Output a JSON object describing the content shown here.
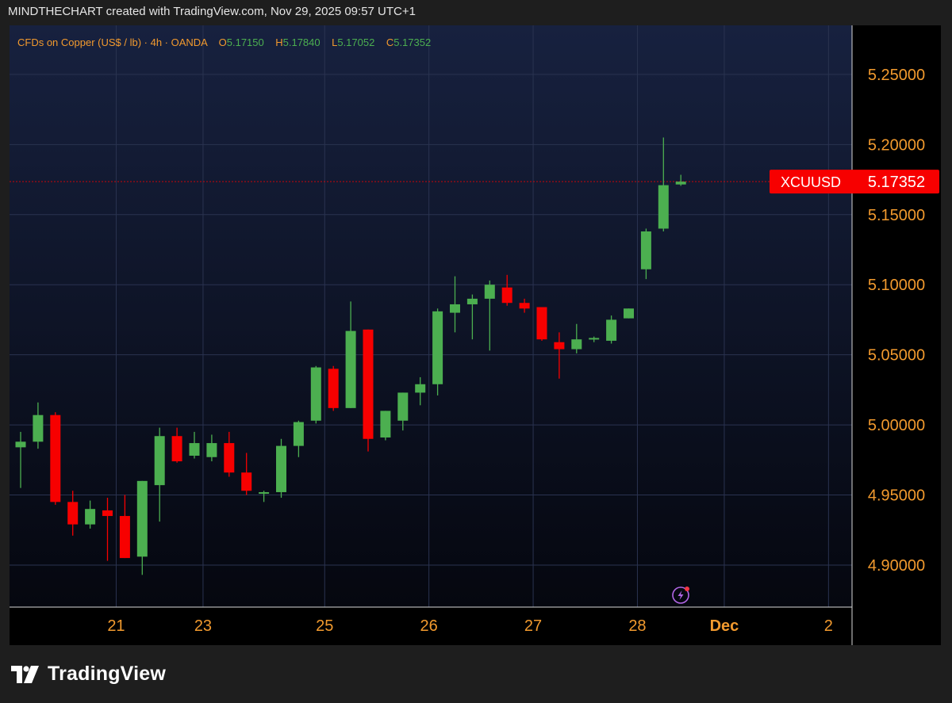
{
  "header": {
    "created_line": "MINDTHECHART created with TradingView.com, Nov 29, 2025 09:57 UTC+1"
  },
  "legend": {
    "instrument": "CFDs on Copper (US$ / lb) · 4h · OANDA",
    "o_label": "O",
    "o_value": "5.17150",
    "h_label": "H",
    "h_value": "5.17840",
    "l_label": "L",
    "l_value": "5.17052",
    "c_label": "C",
    "c_value": "5.17352"
  },
  "price_tag": {
    "symbol": "XCUUSD",
    "value": "5.17352",
    "price": 5.17352
  },
  "brand": {
    "name": "TradingView"
  },
  "colors": {
    "up": "#4caf50",
    "down": "#f70000",
    "axis_text": "#f29a2e",
    "tag_bg": "#f70000"
  },
  "chart_data": {
    "type": "candlestick",
    "symbol": "XCUUSD",
    "timeframe": "4h",
    "ylim": [
      4.87,
      5.285
    ],
    "y_ticks": [
      4.9,
      4.95,
      5.0,
      5.05,
      5.1,
      5.15,
      5.2,
      5.25
    ],
    "y_tick_labels": [
      "4.90000",
      "4.95000",
      "5.00000",
      "5.05000",
      "5.10000",
      "5.15000",
      "5.20000",
      "5.25000"
    ],
    "x_ticks": [
      {
        "label": "21",
        "bar": 5.5
      },
      {
        "label": "23",
        "bar": 10.5
      },
      {
        "label": "25",
        "bar": 17.5
      },
      {
        "label": "26",
        "bar": 23.5
      },
      {
        "label": "27",
        "bar": 29.5
      },
      {
        "label": "28",
        "bar": 35.5
      },
      {
        "label": "Dec",
        "bar": 40.5,
        "bold": true
      },
      {
        "label": "2",
        "bar": 46.5
      }
    ],
    "grid": true,
    "candles": [
      {
        "o": 4.984,
        "h": 4.995,
        "l": 4.955,
        "c": 4.988
      },
      {
        "o": 4.988,
        "h": 5.016,
        "l": 4.983,
        "c": 5.007
      },
      {
        "o": 5.007,
        "h": 5.009,
        "l": 4.943,
        "c": 4.945
      },
      {
        "o": 4.945,
        "h": 4.953,
        "l": 4.921,
        "c": 4.929
      },
      {
        "o": 4.929,
        "h": 4.946,
        "l": 4.926,
        "c": 4.94
      },
      {
        "o": 4.939,
        "h": 4.948,
        "l": 4.903,
        "c": 4.935
      },
      {
        "o": 4.935,
        "h": 4.95,
        "l": 4.905,
        "c": 4.905
      },
      {
        "o": 4.906,
        "h": 4.96,
        "l": 4.893,
        "c": 4.96
      },
      {
        "o": 4.957,
        "h": 4.998,
        "l": 4.931,
        "c": 4.992
      },
      {
        "o": 4.992,
        "h": 4.998,
        "l": 4.973,
        "c": 4.974
      },
      {
        "o": 4.978,
        "h": 4.995,
        "l": 4.976,
        "c": 4.987
      },
      {
        "o": 4.977,
        "h": 4.993,
        "l": 4.974,
        "c": 4.987
      },
      {
        "o": 4.987,
        "h": 4.995,
        "l": 4.963,
        "c": 4.966
      },
      {
        "o": 4.966,
        "h": 4.98,
        "l": 4.95,
        "c": 4.953
      },
      {
        "o": 4.952,
        "h": 4.953,
        "l": 4.945,
        "c": 4.952
      },
      {
        "o": 4.952,
        "h": 4.99,
        "l": 4.948,
        "c": 4.985
      },
      {
        "o": 4.985,
        "h": 5.003,
        "l": 4.977,
        "c": 5.002
      },
      {
        "o": 5.003,
        "h": 5.042,
        "l": 5.001,
        "c": 5.041
      },
      {
        "o": 5.04,
        "h": 5.042,
        "l": 5.01,
        "c": 5.012
      },
      {
        "o": 5.012,
        "h": 5.088,
        "l": 5.012,
        "c": 5.067
      },
      {
        "o": 5.068,
        "h": 5.068,
        "l": 4.981,
        "c": 4.99
      },
      {
        "o": 4.991,
        "h": 5.01,
        "l": 4.989,
        "c": 5.01
      },
      {
        "o": 5.003,
        "h": 5.023,
        "l": 4.996,
        "c": 5.023
      },
      {
        "o": 5.023,
        "h": 5.034,
        "l": 5.014,
        "c": 5.029
      },
      {
        "o": 5.029,
        "h": 5.083,
        "l": 5.021,
        "c": 5.081
      },
      {
        "o": 5.08,
        "h": 5.106,
        "l": 5.066,
        "c": 5.086
      },
      {
        "o": 5.086,
        "h": 5.093,
        "l": 5.061,
        "c": 5.09
      },
      {
        "o": 5.09,
        "h": 5.103,
        "l": 5.053,
        "c": 5.1
      },
      {
        "o": 5.098,
        "h": 5.107,
        "l": 5.085,
        "c": 5.087
      },
      {
        "o": 5.087,
        "h": 5.09,
        "l": 5.08,
        "c": 5.083
      },
      {
        "o": 5.084,
        "h": 5.084,
        "l": 5.06,
        "c": 5.061
      },
      {
        "o": 5.059,
        "h": 5.066,
        "l": 5.033,
        "c": 5.054
      },
      {
        "o": 5.054,
        "h": 5.072,
        "l": 5.051,
        "c": 5.061
      },
      {
        "o": 5.061,
        "h": 5.063,
        "l": 5.059,
        "c": 5.062
      },
      {
        "o": 5.06,
        "h": 5.078,
        "l": 5.058,
        "c": 5.075
      },
      {
        "o": 5.076,
        "h": 5.083,
        "l": 5.076,
        "c": 5.083
      },
      {
        "o": 5.111,
        "h": 5.14,
        "l": 5.104,
        "c": 5.138
      },
      {
        "o": 5.14,
        "h": 5.205,
        "l": 5.138,
        "c": 5.171
      },
      {
        "o": 5.1715,
        "h": 5.1784,
        "l": 5.17052,
        "c": 5.17352
      }
    ]
  }
}
